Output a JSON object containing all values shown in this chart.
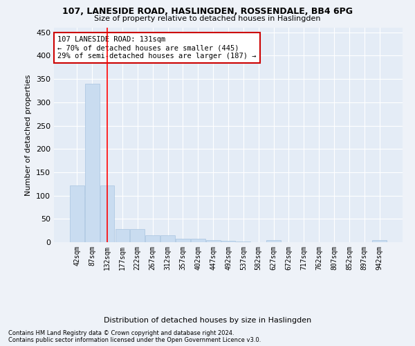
{
  "title1": "107, LANESIDE ROAD, HASLINGDEN, ROSSENDALE, BB4 6PG",
  "title2": "Size of property relative to detached houses in Haslingden",
  "xlabel": "Distribution of detached houses by size in Haslingden",
  "ylabel": "Number of detached properties",
  "bar_labels": [
    "42sqm",
    "87sqm",
    "132sqm",
    "177sqm",
    "222sqm",
    "267sqm",
    "312sqm",
    "357sqm",
    "402sqm",
    "447sqm",
    "492sqm",
    "537sqm",
    "582sqm",
    "627sqm",
    "672sqm",
    "717sqm",
    "762sqm",
    "807sqm",
    "852sqm",
    "897sqm",
    "942sqm"
  ],
  "bar_values": [
    122,
    340,
    122,
    28,
    28,
    15,
    15,
    8,
    7,
    5,
    3,
    2,
    0,
    5,
    0,
    0,
    0,
    0,
    0,
    0,
    5
  ],
  "bar_color": "#c9dcf0",
  "bar_edge_color": "#a8c4e0",
  "property_line_x": 2,
  "annotation_text": "107 LANESIDE ROAD: 131sqm\n← 70% of detached houses are smaller (445)\n29% of semi-detached houses are larger (187) →",
  "annotation_box_color": "#ffffff",
  "annotation_box_edge_color": "#cc0000",
  "footnote1": "Contains HM Land Registry data © Crown copyright and database right 2024.",
  "footnote2": "Contains public sector information licensed under the Open Government Licence v3.0.",
  "ylim": [
    0,
    460
  ],
  "yticks": [
    0,
    50,
    100,
    150,
    200,
    250,
    300,
    350,
    400,
    450
  ],
  "bg_color": "#eef2f8",
  "plot_bg_color": "#e4ecf6"
}
